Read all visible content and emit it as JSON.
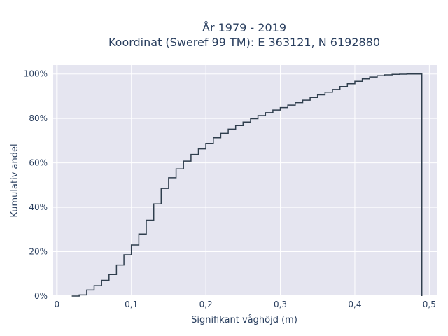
{
  "chart_data": {
    "type": "line",
    "step": true,
    "title_line1": "År 1979 - 2019",
    "title_line2": "Koordinat (Sweref 99 TM): E 363121, N 6192880",
    "xlabel": "Signifikant våghöjd (m)",
    "ylabel": "Kumulativ andel",
    "xlim": [
      -0.005,
      0.51
    ],
    "ylim": [
      0,
      1.04
    ],
    "x_ticks": [
      0,
      0.1,
      0.2,
      0.3,
      0.4,
      0.5
    ],
    "x_tick_labels": [
      "0",
      "0,1",
      "0,2",
      "0,3",
      "0,4",
      "0,5"
    ],
    "y_ticks": [
      0,
      0.2,
      0.4,
      0.6,
      0.8,
      1.0
    ],
    "y_tick_labels": [
      "0%",
      "20%",
      "40%",
      "60%",
      "80%",
      "100%"
    ],
    "grid": true,
    "colors": {
      "plot_bg": "#e5e5f0",
      "line": "#2f3e4d",
      "grid": "#ffffff",
      "text": "#2a3f5f"
    },
    "series": [
      {
        "x": [
          0.02,
          0.03,
          0.04,
          0.05,
          0.06,
          0.07,
          0.08,
          0.09,
          0.1,
          0.11,
          0.12,
          0.13,
          0.14,
          0.15,
          0.16,
          0.17,
          0.18,
          0.19,
          0.2,
          0.21,
          0.22,
          0.23,
          0.24,
          0.25,
          0.26,
          0.27,
          0.28,
          0.29,
          0.3,
          0.31,
          0.32,
          0.33,
          0.34,
          0.35,
          0.36,
          0.37,
          0.38,
          0.39,
          0.4,
          0.41,
          0.42,
          0.43,
          0.44,
          0.45,
          0.46,
          0.47,
          0.48,
          0.49
        ],
        "y": [
          0.0,
          0.005,
          0.027,
          0.047,
          0.071,
          0.097,
          0.14,
          0.186,
          0.23,
          0.28,
          0.342,
          0.415,
          0.485,
          0.533,
          0.573,
          0.608,
          0.638,
          0.663,
          0.688,
          0.713,
          0.733,
          0.752,
          0.768,
          0.784,
          0.799,
          0.813,
          0.826,
          0.838,
          0.849,
          0.86,
          0.871,
          0.882,
          0.894,
          0.906,
          0.918,
          0.93,
          0.943,
          0.956,
          0.967,
          0.978,
          0.986,
          0.992,
          0.996,
          0.998,
          0.999,
          1.0,
          1.0,
          0.0
        ]
      }
    ]
  }
}
